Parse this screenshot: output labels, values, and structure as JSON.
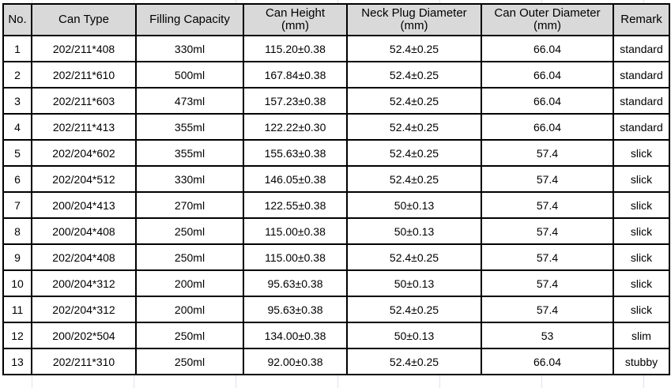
{
  "table": {
    "headers": [
      {
        "line1": "No.",
        "line2": ""
      },
      {
        "line1": "Can Type",
        "line2": ""
      },
      {
        "line1": "Filling Capacity",
        "line2": ""
      },
      {
        "line1": "Can Height",
        "line2": "(mm)"
      },
      {
        "line1": "Neck Plug Diameter",
        "line2": "(mm)"
      },
      {
        "line1": "Can Outer Diameter",
        "line2": "(mm)"
      },
      {
        "line1": "Remark",
        "line2": ""
      }
    ],
    "rows": [
      [
        "1",
        "202/211*408",
        "330ml",
        "115.20±0.38",
        "52.4±0.25",
        "66.04",
        "standard"
      ],
      [
        "2",
        "202/211*610",
        "500ml",
        "167.84±0.38",
        "52.4±0.25",
        "66.04",
        "standard"
      ],
      [
        "3",
        "202/211*603",
        "473ml",
        "157.23±0.38",
        "52.4±0.25",
        "66.04",
        "standard"
      ],
      [
        "4",
        "202/211*413",
        "355ml",
        "122.22±0.30",
        "52.4±0.25",
        "66.04",
        "standard"
      ],
      [
        "5",
        "202/204*602",
        "355ml",
        "155.63±0.38",
        "52.4±0.25",
        "57.4",
        "slick"
      ],
      [
        "6",
        "202/204*512",
        "330ml",
        "146.05±0.38",
        "52.4±0.25",
        "57.4",
        "slick"
      ],
      [
        "7",
        "200/204*413",
        "270ml",
        "122.55±0.38",
        "50±0.13",
        "57.4",
        "slick"
      ],
      [
        "8",
        "200/204*408",
        "250ml",
        "115.00±0.38",
        "50±0.13",
        "57.4",
        "slick"
      ],
      [
        "9",
        "202/204*408",
        "250ml",
        "115.00±0.38",
        "52.4±0.25",
        "57.4",
        "slick"
      ],
      [
        "10",
        "200/204*312",
        "200ml",
        "95.63±0.38",
        "50±0.13",
        "57.4",
        "slick"
      ],
      [
        "11",
        "202/204*312",
        "200ml",
        "95.63±0.38",
        "52.4±0.25",
        "57.4",
        "slick"
      ],
      [
        "12",
        "200/202*504",
        "250ml",
        "134.00±0.38",
        "50±0.13",
        "53",
        "slim"
      ],
      [
        "13",
        "202/211*310",
        "250ml",
        "92.00±0.38",
        "52.4±0.25",
        "66.04",
        "stubby"
      ]
    ]
  }
}
